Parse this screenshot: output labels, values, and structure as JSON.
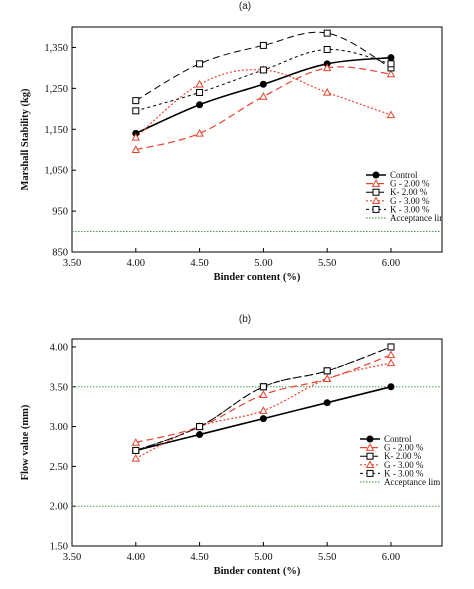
{
  "chart_data": [
    {
      "panel_label": "(a)",
      "type": "line",
      "xlabel": "Binder content (%)",
      "ylabel": "Marshall Stability (kg)",
      "xlim": [
        3.5,
        6.4
      ],
      "ylim": [
        850,
        1400
      ],
      "x_ticks": [
        "3.50",
        "4.00",
        "4.50",
        "5.00",
        "5.50",
        "6.00"
      ],
      "y_ticks": [
        "850",
        "950",
        "1,050",
        "1,150",
        "1,250",
        "1,350"
      ],
      "x_tick_values": [
        3.5,
        4.0,
        4.5,
        5.0,
        5.5,
        6.0
      ],
      "y_tick_values": [
        850,
        950,
        1050,
        1150,
        1250,
        1350
      ],
      "legend_position": "right",
      "grid": false,
      "series": [
        {
          "name": "Control",
          "x": [
            4.0,
            4.5,
            5.0,
            5.5,
            6.0
          ],
          "values": [
            1140,
            1210,
            1260,
            1310,
            1325
          ],
          "color": "#000000",
          "dash": "",
          "marker": "circle-filled",
          "width": 1.6
        },
        {
          "name": "G - 2.00 %",
          "x": [
            4.0,
            4.5,
            5.0,
            5.5,
            6.0
          ],
          "values": [
            1100,
            1140,
            1230,
            1300,
            1285
          ],
          "color": "#e8432e",
          "dash": "7,4",
          "marker": "triangle",
          "width": 1.2
        },
        {
          "name": "K- 2.00 %",
          "x": [
            4.0,
            4.5,
            5.0,
            5.5,
            6.0
          ],
          "values": [
            1220,
            1310,
            1355,
            1385,
            1300
          ],
          "color": "#000000",
          "dash": "7,4",
          "marker": "square",
          "width": 1.0
        },
        {
          "name": "G - 3.00 %",
          "x": [
            4.0,
            4.5,
            5.0,
            5.5,
            6.0
          ],
          "values": [
            1130,
            1260,
            1295,
            1240,
            1185
          ],
          "color": "#e8432e",
          "dash": "2,2",
          "marker": "triangle",
          "width": 1.2
        },
        {
          "name": "K - 3.00 %",
          "x": [
            4.0,
            4.5,
            5.0,
            5.5,
            6.0
          ],
          "values": [
            1195,
            1240,
            1295,
            1345,
            1310
          ],
          "color": "#000000",
          "dash": "3,3",
          "marker": "square",
          "width": 1.0
        }
      ],
      "reference_line": {
        "name": "Acceptance lim",
        "value": 900,
        "color": "#2e8b3e"
      }
    },
    {
      "panel_label": "(b)",
      "type": "line",
      "xlabel": "Binder content (%)",
      "ylabel": "Flow value (mm)",
      "xlim": [
        3.5,
        6.4
      ],
      "ylim": [
        1.5,
        4.1
      ],
      "x_ticks": [
        "3.50",
        "4.00",
        "4.50",
        "5.00",
        "5.50",
        "6.00"
      ],
      "y_ticks": [
        "1.50",
        "2.00",
        "2.50",
        "3.00",
        "3.50",
        "4.00"
      ],
      "x_tick_values": [
        3.5,
        4.0,
        4.5,
        5.0,
        5.5,
        6.0
      ],
      "y_tick_values": [
        1.5,
        2.0,
        2.5,
        3.0,
        3.5,
        4.0
      ],
      "legend_position": "right",
      "grid": false,
      "series": [
        {
          "name": "Control",
          "x": [
            4.0,
            4.5,
            5.0,
            5.5,
            6.0
          ],
          "values": [
            2.7,
            2.9,
            3.1,
            3.3,
            3.5
          ],
          "color": "#000000",
          "dash": "",
          "marker": "circle-filled",
          "width": 1.6
        },
        {
          "name": "G - 2.00 %",
          "x": [
            4.0,
            4.5,
            5.0,
            5.5,
            6.0
          ],
          "values": [
            2.8,
            3.0,
            3.4,
            3.6,
            3.9
          ],
          "color": "#e8432e",
          "dash": "7,4",
          "marker": "triangle",
          "width": 1.2
        },
        {
          "name": "K- 2.00 %",
          "x": [
            4.0,
            4.5,
            5.0,
            5.5,
            6.0
          ],
          "values": [
            2.7,
            3.0,
            3.5,
            3.7,
            4.0
          ],
          "color": "#000000",
          "dash": "7,4",
          "marker": "square",
          "width": 1.0
        },
        {
          "name": "G - 3.00 %",
          "x": [
            4.0,
            4.5,
            5.0,
            5.5,
            6.0
          ],
          "values": [
            2.6,
            3.0,
            3.2,
            3.6,
            3.8
          ],
          "color": "#e8432e",
          "dash": "2,2",
          "marker": "triangle",
          "width": 1.2
        },
        {
          "name": "K - 3.00 %",
          "x": [
            4.0,
            4.5,
            5.0,
            5.5,
            6.0
          ],
          "values": [
            2.7,
            3.0,
            3.5,
            3.7,
            4.0
          ],
          "color": "#000000",
          "dash": "3,3",
          "marker": "square",
          "width": 1.0
        }
      ],
      "reference_lines": [
        {
          "name": "Acceptance lim",
          "value": 2.0,
          "color": "#2e8b3e"
        },
        {
          "name": "",
          "value": 3.5,
          "color": "#2e8b3e"
        }
      ]
    }
  ]
}
